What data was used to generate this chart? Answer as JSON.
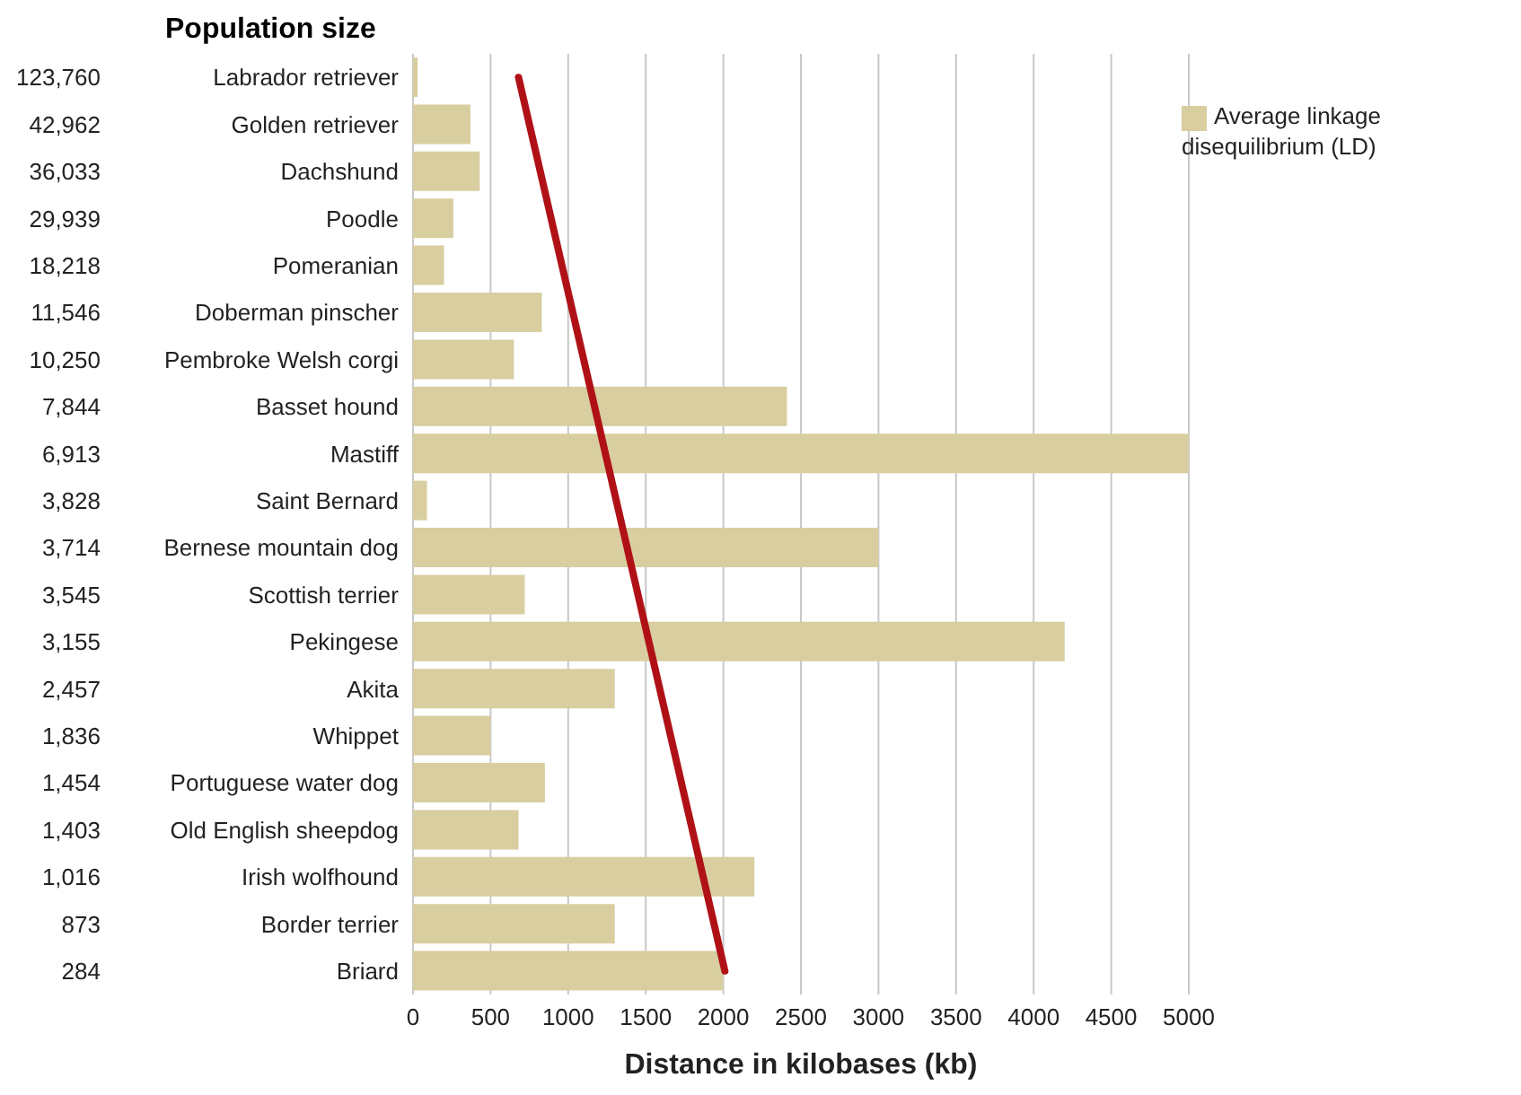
{
  "chart_data": {
    "type": "bar",
    "orientation": "horizontal",
    "y2label": "Population size",
    "xlabel": "Distance in kilobases (kb)",
    "categories": [
      "Labrador retriever",
      "Golden retriever",
      "Dachshund",
      "Poodle",
      "Pomeranian",
      "Doberman pinscher",
      "Pembroke Welsh corgi",
      "Basset hound",
      "Mastiff",
      "Saint Bernard",
      "Bernese mountain dog",
      "Scottish terrier",
      "Pekingese",
      "Akita",
      "Whippet",
      "Portuguese water dog",
      "Old English sheepdog",
      "Irish wolfhound",
      "Border terrier",
      "Briard"
    ],
    "y2_categories": [
      "123,760",
      "42,962",
      "36,033",
      "29,939",
      "18,218",
      "11,546",
      "10,250",
      "7,844",
      "6,913",
      "3,828",
      "3,714",
      "3,545",
      "3,155",
      "2,457",
      "1,836",
      "1,454",
      "1,403",
      "1,016",
      "873",
      "284"
    ],
    "series": [
      {
        "name": "Average linkage disequilibrium (LD)",
        "color": "#d8cea0",
        "values": [
          30,
          370,
          430,
          260,
          200,
          830,
          650,
          2410,
          5000,
          90,
          3000,
          720,
          4200,
          1300,
          500,
          850,
          680,
          2200,
          1300,
          2000
        ]
      },
      {
        "type": "line",
        "color": "#b01117",
        "values": [
          680,
          null,
          null,
          null,
          null,
          null,
          null,
          null,
          null,
          null,
          null,
          null,
          null,
          null,
          null,
          null,
          null,
          null,
          null,
          2010
        ]
      }
    ],
    "xlim": [
      0,
      5000
    ],
    "xticks": [
      0,
      500,
      1000,
      1500,
      2000,
      2500,
      3000,
      3500,
      4000,
      4500,
      5000
    ],
    "grid": "x",
    "legend": "top right"
  }
}
